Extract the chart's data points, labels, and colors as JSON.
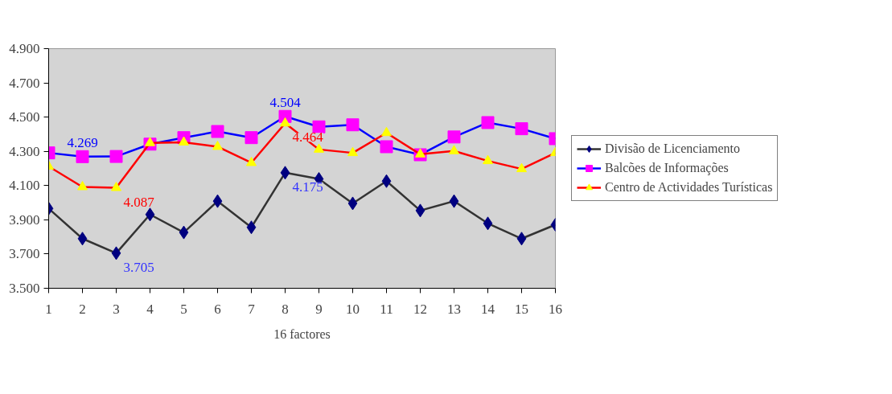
{
  "chart_data": {
    "type": "line",
    "xlabel": "16 factores",
    "x": [
      1,
      2,
      3,
      4,
      5,
      6,
      7,
      8,
      9,
      10,
      11,
      12,
      13,
      14,
      15,
      16
    ],
    "xlim": [
      1,
      16
    ],
    "xticks": [
      1,
      2,
      3,
      4,
      5,
      6,
      7,
      8,
      9,
      10,
      11,
      12,
      13,
      14,
      15,
      16
    ],
    "ylim": [
      3.5,
      4.9
    ],
    "yticks": [
      {
        "value": 3.5,
        "label": "3.500"
      },
      {
        "value": 3.7,
        "label": "3.700"
      },
      {
        "value": 3.9,
        "label": "3.900"
      },
      {
        "value": 4.1,
        "label": "4.100"
      },
      {
        "value": 4.3,
        "label": "4.300"
      },
      {
        "value": 4.5,
        "label": "4.500"
      },
      {
        "value": 4.7,
        "label": "4.700"
      },
      {
        "value": 4.9,
        "label": "4.900"
      }
    ],
    "grid": false,
    "legend": "right",
    "series": [
      {
        "name": "Divisão de Licenciamento",
        "color": "#333333",
        "marker": "diamond",
        "colors": [
          "#000080",
          "#000080",
          "#000080",
          "#000080",
          "#000080",
          "#000080",
          "#000080",
          "#000080",
          "#000080",
          "#000080",
          "#000080",
          "#000080",
          "#000080",
          "#000080",
          "#000080",
          "#000080"
        ],
        "values": [
          3.966,
          3.79,
          3.705,
          3.931,
          3.826,
          4.009,
          3.856,
          4.175,
          4.139,
          3.996,
          4.126,
          3.954,
          4.009,
          3.879,
          3.79,
          3.871
        ],
        "value_labels": [
          null,
          null,
          "3.705",
          null,
          null,
          null,
          null,
          "4.175",
          null,
          null,
          null,
          null,
          null,
          null,
          null,
          null
        ]
      },
      {
        "name": "Balcões de Informações",
        "color": "#0000ff",
        "marker": "square",
        "colors": [
          "#ff00ff",
          "#ff00ff",
          "#ff00ff",
          "#ff00ff",
          "#ff00ff",
          "#ff00ff",
          "#ff00ff",
          "#ff00ff",
          "#ff00ff",
          "#ff00ff",
          "#ff00ff",
          "#ff00ff",
          "#ff00ff",
          "#ff00ff",
          "#ff00ff",
          "#ff00ff"
        ],
        "values": [
          4.291,
          4.269,
          4.27,
          4.342,
          4.38,
          4.416,
          4.38,
          4.504,
          4.443,
          4.455,
          4.327,
          4.28,
          4.384,
          4.468,
          4.432,
          4.374
        ],
        "value_labels": [
          null,
          "4.269",
          null,
          null,
          null,
          null,
          null,
          "4.504",
          null,
          null,
          null,
          null,
          null,
          null,
          null,
          null
        ]
      },
      {
        "name": "Centro de Actividades Turísticas",
        "color": "#ff0000",
        "marker": "triangle",
        "colors": [
          "#ffff00",
          "#ffff00",
          "#ffff00",
          "#ffff00",
          "#ffff00",
          "#ffff00",
          "#ffff00",
          "#ffff00",
          "#ffff00",
          "#ffff00",
          "#ffff00",
          "#ffff00",
          "#ffff00",
          "#ffff00",
          "#ffff00",
          "#ffff00"
        ],
        "values": [
          4.212,
          4.092,
          4.087,
          4.349,
          4.353,
          4.327,
          4.233,
          4.464,
          4.311,
          4.291,
          4.408,
          4.283,
          4.302,
          4.244,
          4.197,
          4.291
        ],
        "value_labels": [
          null,
          null,
          "4.087",
          null,
          null,
          null,
          null,
          "4.464",
          null,
          null,
          null,
          null,
          null,
          null,
          null,
          null
        ]
      }
    ]
  }
}
